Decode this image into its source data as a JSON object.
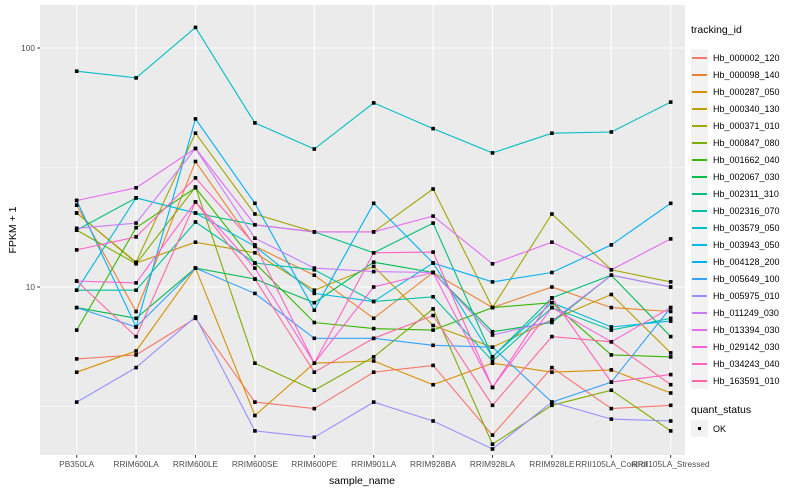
{
  "chart_data": {
    "type": "line",
    "title": "",
    "xlabel": "sample_name",
    "ylabel": "FPKM + 1",
    "y_scale": "log10",
    "ylim": [
      2.0,
      150
    ],
    "grid": "on",
    "legend_position": "right",
    "y_ticks": [
      {
        "label": "100",
        "value": 100
      },
      {
        "label": "10",
        "value": 10
      }
    ],
    "y_minor_breaks": [
      31.623,
      3.1623
    ],
    "categories": [
      "PB350LA",
      "RRIM600LA",
      "RRIM600LE",
      "RRIM600SE",
      "RRIM600PE",
      "RRIM901LA",
      "RRIM928BA",
      "RRIM928LA",
      "RRIM928LE",
      "RRII105LA_Control",
      "RRII105LA_Stressed"
    ],
    "series": [
      {
        "name": "Hb_000002_120",
        "color": "#F8766D",
        "values": [
          5.0,
          5.2,
          7.4,
          3.3,
          3.1,
          4.4,
          4.7,
          2.4,
          4.6,
          3.1,
          3.2
        ]
      },
      {
        "name": "Hb_000098_140",
        "color": "#EA8331",
        "values": [
          22.0,
          7.9,
          33.5,
          14.8,
          11.2,
          7.4,
          11.5,
          8.2,
          10.0,
          8.2,
          7.9
        ]
      },
      {
        "name": "Hb_000287_050",
        "color": "#D89000",
        "values": [
          4.4,
          5.4,
          12.0,
          2.9,
          4.8,
          4.9,
          3.9,
          4.8,
          4.4,
          4.5,
          3.6
        ]
      },
      {
        "name": "Hb_000340_130",
        "color": "#C09B00",
        "values": [
          20.4,
          12.6,
          15.4,
          13.9,
          9.7,
          12.2,
          6.9,
          5.6,
          7.3,
          9.3,
          5.3
        ]
      },
      {
        "name": "Hb_000371_010",
        "color": "#A3A500",
        "values": [
          20.4,
          12.7,
          44.0,
          20.2,
          17.0,
          17.0,
          25.7,
          8.2,
          20.2,
          11.8,
          10.5
        ]
      },
      {
        "name": "Hb_000847_080",
        "color": "#7CAE00",
        "values": [
          17.3,
          12.5,
          26.2,
          4.8,
          3.7,
          5.1,
          8.1,
          2.2,
          3.2,
          3.7,
          2.5
        ]
      },
      {
        "name": "Hb_001662_040",
        "color": "#39B600",
        "values": [
          6.6,
          17.7,
          26.0,
          12.6,
          7.1,
          6.7,
          6.6,
          8.2,
          8.6,
          5.2,
          5.1
        ]
      },
      {
        "name": "Hb_002067_030",
        "color": "#00BB4E",
        "values": [
          8.2,
          7.4,
          12.0,
          10.8,
          8.6,
          12.7,
          11.5,
          6.5,
          7.1,
          11.2,
          6.2
        ]
      },
      {
        "name": "Hb_002311_310",
        "color": "#00BF7D",
        "values": [
          17.3,
          23.6,
          20.4,
          18.2,
          17.0,
          13.9,
          18.5,
          5.1,
          9.0,
          11.2,
          10.0
        ]
      },
      {
        "name": "Hb_002316_070",
        "color": "#00C1A3",
        "values": [
          9.7,
          9.7,
          18.7,
          12.6,
          11.8,
          8.7,
          9.1,
          4.9,
          8.2,
          6.6,
          7.4
        ]
      },
      {
        "name": "Hb_003579_050",
        "color": "#00BFC4",
        "values": [
          80,
          75,
          122,
          48.6,
          37.8,
          58.9,
          46.0,
          36.4,
          44.0,
          44.5,
          59.4
        ]
      },
      {
        "name": "Hb_003943_050",
        "color": "#00BAE0",
        "values": [
          9.7,
          23.6,
          20.4,
          14.8,
          9.4,
          8.7,
          12.6,
          5.1,
          8.6,
          6.8,
          7.2
        ]
      },
      {
        "name": "Hb_004128_200",
        "color": "#00B0F6",
        "values": [
          23.0,
          6.8,
          50.5,
          22.4,
          8.0,
          22.4,
          12.6,
          10.5,
          11.5,
          15.0,
          22.4
        ]
      },
      {
        "name": "Hb_005649_100",
        "color": "#35A2FF",
        "values": [
          8.2,
          6.8,
          12.0,
          9.4,
          6.1,
          6.1,
          5.7,
          5.6,
          3.3,
          4.0,
          8.2
        ]
      },
      {
        "name": "Hb_005975_010",
        "color": "#9590FF",
        "values": [
          3.3,
          4.6,
          7.5,
          2.5,
          2.35,
          3.3,
          2.75,
          2.1,
          3.3,
          2.8,
          2.75
        ]
      },
      {
        "name": "Hb_011249_030",
        "color": "#C77CFF",
        "values": [
          17.6,
          18.5,
          38.0,
          16.0,
          12.0,
          11.6,
          11.5,
          6.3,
          7.2,
          11.2,
          10.0
        ]
      },
      {
        "name": "Hb_013394_030",
        "color": "#E76BF3",
        "values": [
          23.0,
          26.0,
          38.0,
          18.2,
          17.0,
          17.0,
          19.8,
          12.5,
          15.4,
          11.8,
          15.9
        ]
      },
      {
        "name": "Hb_029142_030",
        "color": "#FA62DB",
        "values": [
          10.6,
          10.4,
          22.7,
          12.0,
          4.8,
          10.0,
          11.5,
          3.8,
          8.2,
          5.9,
          8.2
        ]
      },
      {
        "name": "Hb_034243_040",
        "color": "#FF61C3",
        "values": [
          14.3,
          16.2,
          28.6,
          15.0,
          4.8,
          13.9,
          14.0,
          3.8,
          9.0,
          4.0,
          4.3
        ]
      },
      {
        "name": "Hb_163591_010",
        "color": "#FF67A4",
        "values": [
          10.6,
          6.2,
          22.7,
          10.8,
          4.4,
          6.1,
          7.6,
          3.2,
          6.2,
          5.9,
          3.9
        ]
      }
    ],
    "legend": {
      "tracking_title": "tracking_id",
      "quant_title": "quant_status",
      "quant_value": "OK"
    },
    "point_shape": "filled-square",
    "point_color": "#000000"
  },
  "colors": {
    "panel_bg": "#EBEBEB",
    "grid": "#FFFFFF",
    "tick_mark": "#333333",
    "tick_text": "#4D4D4D",
    "axis_text": "#000000",
    "legend_key_bg": "#F2F2F2",
    "page_bg": "#FFFFFF"
  }
}
